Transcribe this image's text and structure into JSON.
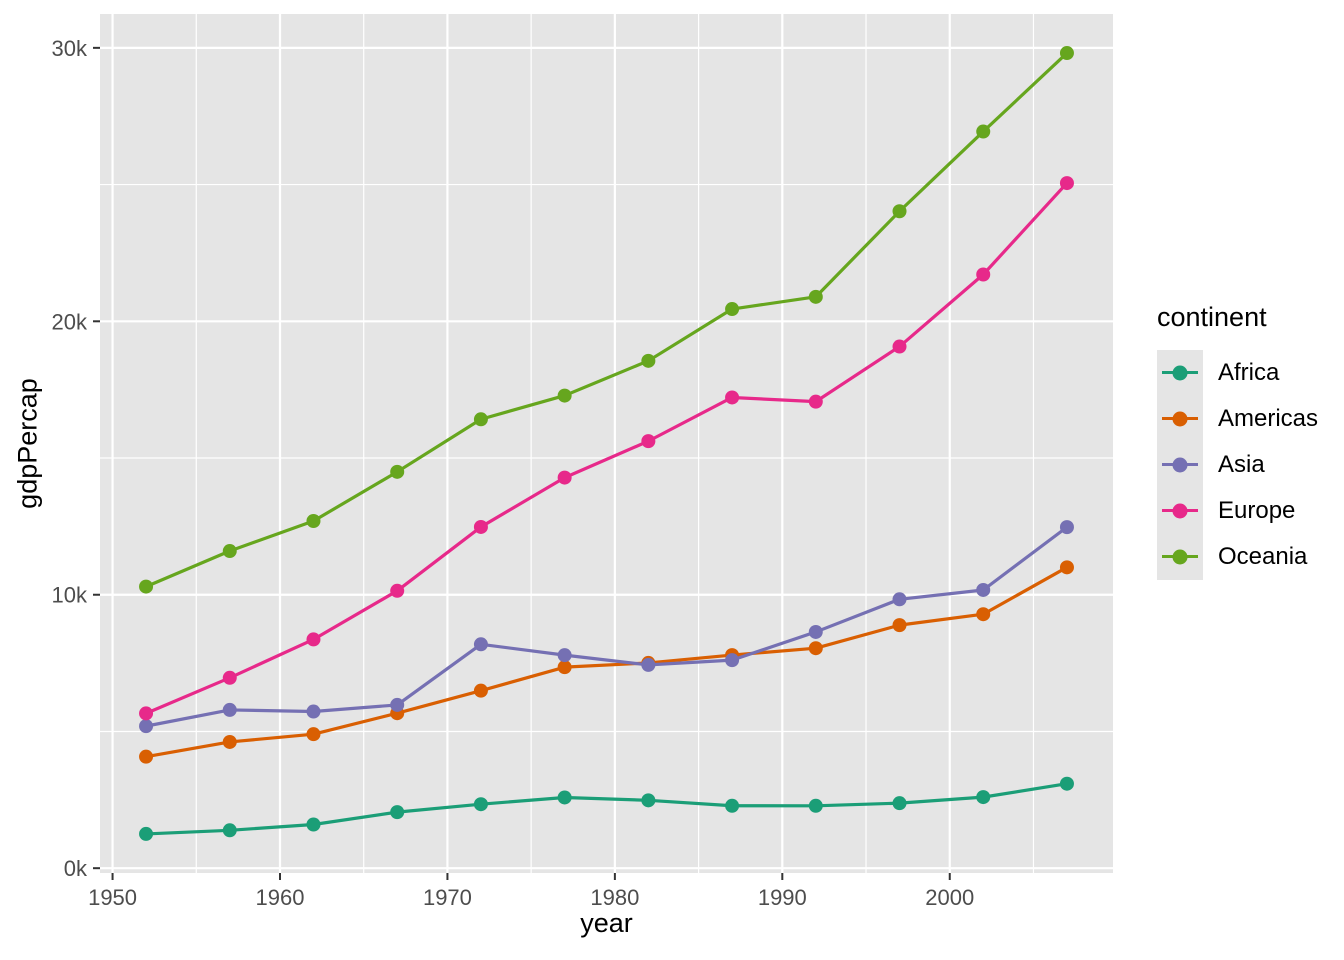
{
  "figure": {
    "background": "#FFFFFF"
  },
  "legend": {
    "title": "continent",
    "position": "right"
  },
  "chart_data": {
    "type": "line",
    "title": "",
    "xlabel": "year",
    "ylabel": "gdpPercap",
    "x": [
      1952,
      1957,
      1962,
      1967,
      1972,
      1977,
      1982,
      1987,
      1992,
      1997,
      2002,
      2007
    ],
    "series": [
      {
        "name": "Africa",
        "color": "#1B9E77",
        "values": [
          1252.6,
          1385.2,
          1598.1,
          2050.4,
          2339.6,
          2585.9,
          2481.6,
          2282.7,
          2281.8,
          2378.8,
          2599.4,
          3089.0
        ]
      },
      {
        "name": "Americas",
        "color": "#D95F02",
        "values": [
          4079.1,
          4616.0,
          4901.5,
          5668.3,
          6491.3,
          7352.0,
          7506.7,
          7793.4,
          8044.9,
          8889.3,
          9287.7,
          11003.0
        ]
      },
      {
        "name": "Asia",
        "color": "#7570B3",
        "values": [
          5195.5,
          5787.7,
          5729.4,
          5971.2,
          8187.5,
          7791.3,
          7434.1,
          7608.2,
          8639.7,
          9834.1,
          10174.1,
          12473.0
        ]
      },
      {
        "name": "Europe",
        "color": "#E7298A",
        "values": [
          5661.1,
          6963.0,
          8365.5,
          10143.8,
          12479.6,
          14284.0,
          15617.9,
          17214.3,
          17061.6,
          19076.8,
          21711.7,
          25054.5
        ]
      },
      {
        "name": "Oceania",
        "color": "#66A61E",
        "values": [
          10298.1,
          11598.5,
          12696.5,
          14495.0,
          16417.3,
          17284.0,
          18554.7,
          20448.0,
          20894.0,
          24024.2,
          26938.8,
          29810.2
        ]
      }
    ],
    "xlim": [
      1949.25,
      2009.75
    ],
    "ylim": [
      -176,
      31238
    ],
    "x_major_ticks": [
      1950,
      1960,
      1970,
      1980,
      1990,
      2000
    ],
    "x_tick_labels": [
      "1950",
      "1960",
      "1970",
      "1980",
      "1990",
      "2000"
    ],
    "x_minor_ticks": [
      1955,
      1965,
      1975,
      1985,
      1995,
      2005
    ],
    "y_major_ticks": [
      0,
      10000,
      20000,
      30000
    ],
    "y_tick_labels": [
      "0k",
      "10k",
      "20k",
      "30k"
    ],
    "y_minor_ticks": [
      5000,
      15000,
      25000
    ],
    "grid": true,
    "legend_position": "right",
    "panel_bg": "#E5E5E5",
    "grid_color": "#FFFFFF",
    "tick_mark_color": "#333333",
    "tick_label_color": "#4D4D4D",
    "line_width": 3.2,
    "point_radius": 7
  }
}
